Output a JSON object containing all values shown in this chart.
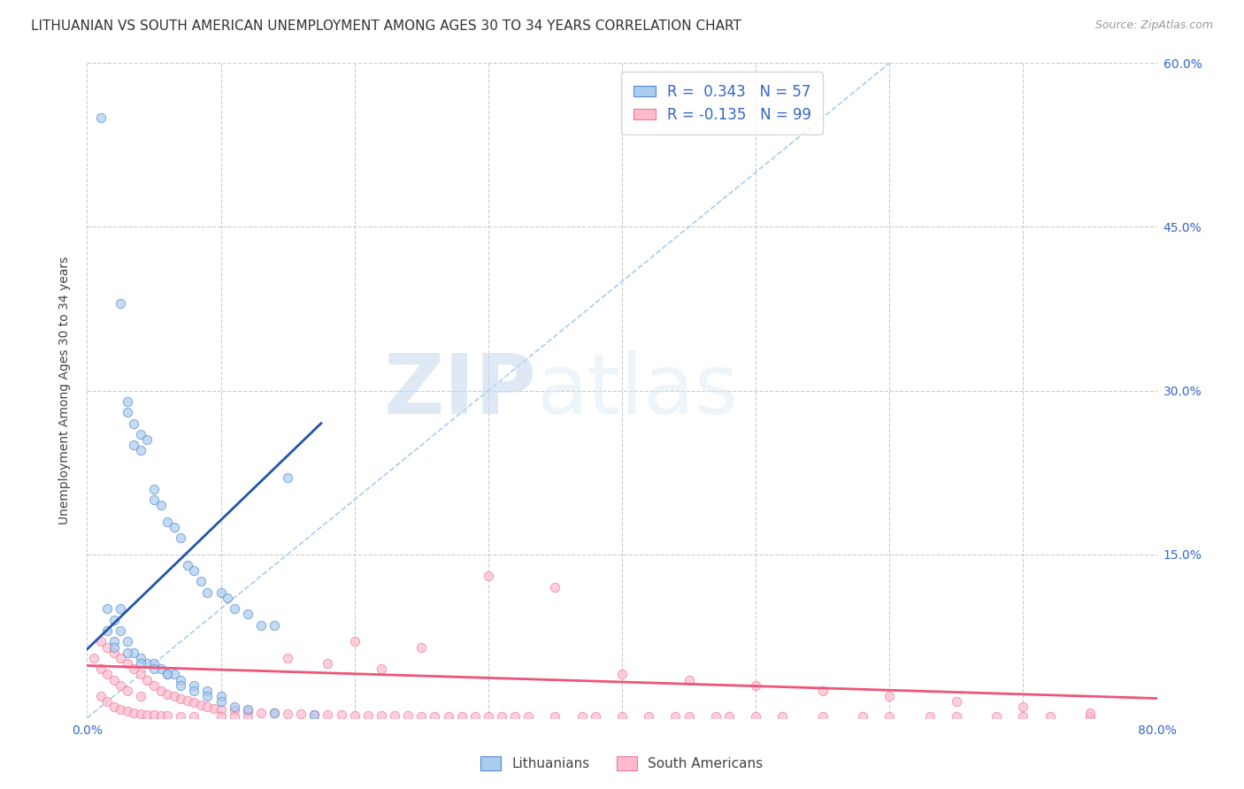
{
  "title": "LITHUANIAN VS SOUTH AMERICAN UNEMPLOYMENT AMONG AGES 30 TO 34 YEARS CORRELATION CHART",
  "source": "Source: ZipAtlas.com",
  "ylabel": "Unemployment Among Ages 30 to 34 years",
  "xlim": [
    0.0,
    0.8
  ],
  "ylim": [
    0.0,
    0.6
  ],
  "xtick_positions": [
    0.0,
    0.1,
    0.2,
    0.3,
    0.4,
    0.5,
    0.6,
    0.7,
    0.8
  ],
  "xticklabels": [
    "0.0%",
    "",
    "",
    "",
    "",
    "",
    "",
    "",
    "80.0%"
  ],
  "ytick_positions": [
    0.0,
    0.15,
    0.3,
    0.45,
    0.6
  ],
  "yticklabels_right": [
    "",
    "15.0%",
    "30.0%",
    "45.0%",
    "60.0%"
  ],
  "diagonal_color": "#aaccee",
  "blue_color": "#aaccee",
  "blue_edge_color": "#5588cc",
  "pink_color": "#ffbbcc",
  "pink_edge_color": "#ee7799",
  "blue_line_color": "#2255aa",
  "pink_line_color": "#ee5577",
  "legend_R_blue": "0.343",
  "legend_N_blue": "57",
  "legend_R_pink": "-0.135",
  "legend_N_pink": "99",
  "blue_line_x": [
    0.0,
    0.175
  ],
  "blue_line_y": [
    0.063,
    0.27
  ],
  "pink_line_x": [
    0.0,
    0.8
  ],
  "pink_line_y": [
    0.048,
    0.018
  ],
  "blue_scatter_x": [
    0.01,
    0.015,
    0.015,
    0.02,
    0.02,
    0.025,
    0.025,
    0.025,
    0.03,
    0.03,
    0.03,
    0.035,
    0.035,
    0.035,
    0.04,
    0.04,
    0.04,
    0.045,
    0.045,
    0.05,
    0.05,
    0.05,
    0.055,
    0.055,
    0.06,
    0.06,
    0.065,
    0.065,
    0.07,
    0.07,
    0.075,
    0.08,
    0.08,
    0.085,
    0.09,
    0.09,
    0.1,
    0.1,
    0.105,
    0.11,
    0.12,
    0.13,
    0.14,
    0.15,
    0.02,
    0.03,
    0.04,
    0.05,
    0.06,
    0.07,
    0.08,
    0.09,
    0.1,
    0.11,
    0.12,
    0.14,
    0.17
  ],
  "blue_scatter_y": [
    0.55,
    0.1,
    0.08,
    0.09,
    0.07,
    0.38,
    0.1,
    0.08,
    0.29,
    0.28,
    0.07,
    0.27,
    0.25,
    0.06,
    0.26,
    0.245,
    0.055,
    0.255,
    0.05,
    0.21,
    0.2,
    0.05,
    0.195,
    0.045,
    0.18,
    0.04,
    0.175,
    0.04,
    0.165,
    0.035,
    0.14,
    0.135,
    0.03,
    0.125,
    0.115,
    0.025,
    0.115,
    0.02,
    0.11,
    0.1,
    0.095,
    0.085,
    0.085,
    0.22,
    0.065,
    0.06,
    0.05,
    0.045,
    0.04,
    0.03,
    0.025,
    0.02,
    0.015,
    0.01,
    0.008,
    0.005,
    0.003
  ],
  "pink_scatter_x": [
    0.005,
    0.01,
    0.01,
    0.01,
    0.015,
    0.015,
    0.015,
    0.02,
    0.02,
    0.02,
    0.025,
    0.025,
    0.025,
    0.03,
    0.03,
    0.03,
    0.035,
    0.035,
    0.04,
    0.04,
    0.04,
    0.045,
    0.045,
    0.05,
    0.05,
    0.055,
    0.055,
    0.06,
    0.06,
    0.065,
    0.07,
    0.07,
    0.075,
    0.08,
    0.08,
    0.085,
    0.09,
    0.095,
    0.1,
    0.1,
    0.11,
    0.11,
    0.12,
    0.12,
    0.13,
    0.14,
    0.15,
    0.16,
    0.17,
    0.18,
    0.19,
    0.2,
    0.21,
    0.22,
    0.23,
    0.24,
    0.25,
    0.26,
    0.27,
    0.28,
    0.29,
    0.3,
    0.31,
    0.32,
    0.33,
    0.35,
    0.37,
    0.38,
    0.4,
    0.42,
    0.44,
    0.45,
    0.47,
    0.48,
    0.5,
    0.52,
    0.55,
    0.58,
    0.6,
    0.63,
    0.65,
    0.68,
    0.7,
    0.72,
    0.75,
    0.3,
    0.35,
    0.2,
    0.25,
    0.15,
    0.18,
    0.22,
    0.4,
    0.45,
    0.5,
    0.55,
    0.6,
    0.65,
    0.7,
    0.75
  ],
  "pink_scatter_y": [
    0.055,
    0.07,
    0.045,
    0.02,
    0.065,
    0.04,
    0.015,
    0.06,
    0.035,
    0.01,
    0.055,
    0.03,
    0.008,
    0.05,
    0.025,
    0.006,
    0.045,
    0.005,
    0.04,
    0.02,
    0.004,
    0.035,
    0.003,
    0.03,
    0.003,
    0.025,
    0.002,
    0.022,
    0.002,
    0.02,
    0.018,
    0.001,
    0.016,
    0.014,
    0.001,
    0.012,
    0.01,
    0.009,
    0.008,
    0.001,
    0.007,
    0.001,
    0.006,
    0.001,
    0.005,
    0.005,
    0.004,
    0.004,
    0.003,
    0.003,
    0.003,
    0.002,
    0.002,
    0.002,
    0.002,
    0.002,
    0.001,
    0.001,
    0.001,
    0.001,
    0.001,
    0.001,
    0.001,
    0.001,
    0.001,
    0.001,
    0.001,
    0.001,
    0.001,
    0.001,
    0.001,
    0.001,
    0.001,
    0.001,
    0.001,
    0.001,
    0.001,
    0.001,
    0.001,
    0.001,
    0.001,
    0.001,
    0.001,
    0.001,
    0.001,
    0.13,
    0.12,
    0.07,
    0.065,
    0.055,
    0.05,
    0.045,
    0.04,
    0.035,
    0.03,
    0.025,
    0.02,
    0.015,
    0.01,
    0.005
  ],
  "background_color": "#ffffff",
  "grid_color": "#cccccc",
  "watermark_zip": "ZIP",
  "watermark_atlas": "atlas",
  "title_fontsize": 11,
  "axis_label_fontsize": 10,
  "tick_fontsize": 10,
  "legend_fontsize": 12
}
